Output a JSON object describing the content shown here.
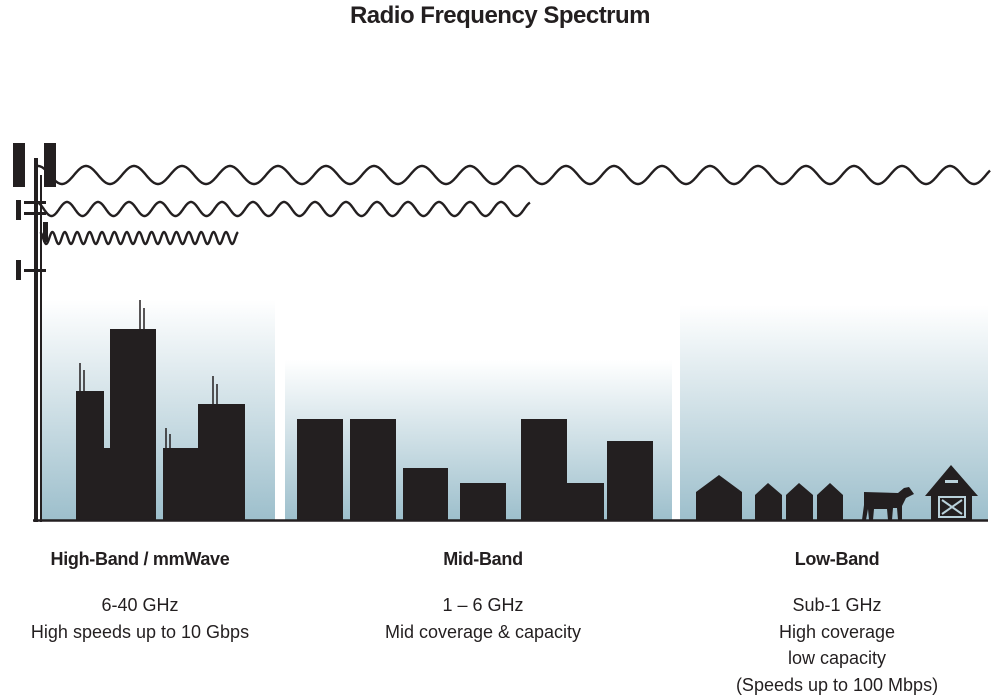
{
  "title": "Radio Frequency Spectrum",
  "colors": {
    "silhouette": "#231f20",
    "panel_top": "#ffffff",
    "panel_bottom": "#9dbfcc"
  },
  "bands": [
    {
      "name": "High-Band / mmWave",
      "lines": [
        "6-40 GHz",
        "High speeds up to 10 Gbps"
      ]
    },
    {
      "name": "Mid-Band",
      "lines": [
        "1 – 6 GHz",
        "Mid coverage & capacity"
      ]
    },
    {
      "name": "Low-Band",
      "lines": [
        "Sub-1 GHz",
        "High coverage",
        "low capacity",
        "(Speeds up to 100 Mbps)"
      ]
    }
  ]
}
